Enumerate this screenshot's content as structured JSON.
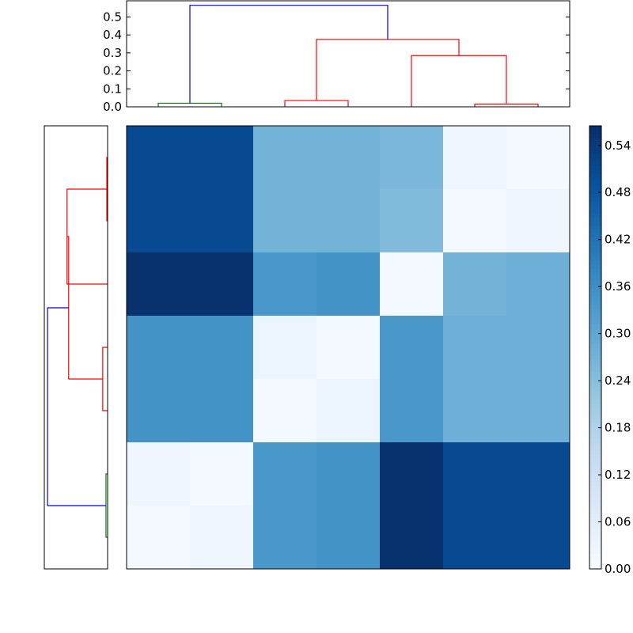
{
  "chart_data": [
    {
      "type": "dendrogram",
      "orientation": "top",
      "ylim": [
        0,
        0.59
      ],
      "yticks": [
        "0.0",
        "0.1",
        "0.2",
        "0.3",
        "0.4",
        "0.5"
      ],
      "leaf_count": 7,
      "links": [
        {
          "left": 0.5,
          "right": 1.5,
          "height": 0.02,
          "color": "#008000"
        },
        {
          "left": 2.5,
          "right": 3.5,
          "height": 0.035,
          "color": "#ff0000"
        },
        {
          "left": 5.5,
          "right": 6.5,
          "height": 0.015,
          "color": "#ff0000"
        },
        {
          "left": 4.5,
          "right": 6.0,
          "height": 0.285,
          "color": "#ff0000"
        },
        {
          "left": 3.0,
          "right": 5.25,
          "height": 0.375,
          "color": "#ff0000"
        },
        {
          "left": 1.0,
          "right": 4.125,
          "height": 0.565,
          "color": "#0000ff"
        }
      ]
    },
    {
      "type": "dendrogram",
      "orientation": "left",
      "leaf_count": 7,
      "links": [
        {
          "top": 0.5,
          "bottom": 1.5,
          "height": 0.01,
          "color": "#ff0000"
        },
        {
          "top": 1.0,
          "bottom": 2.5,
          "height": 0.5,
          "color": "#ff0000"
        },
        {
          "top": 3.5,
          "bottom": 4.5,
          "height": 0.06,
          "color": "#ff0000"
        },
        {
          "top": 1.75,
          "bottom": 4.0,
          "height": 0.48,
          "color": "#ff0000"
        },
        {
          "top": 5.5,
          "bottom": 6.5,
          "height": 0.02,
          "color": "#008000"
        },
        {
          "top": 2.875,
          "bottom": 6.0,
          "height": 0.74,
          "color": "#0000ff"
        }
      ]
    },
    {
      "type": "heatmap",
      "rows": 7,
      "cols": 7,
      "vmin": 0.0,
      "vmax": 0.565,
      "colormap": "Blues",
      "values": [
        [
          0.51,
          0.51,
          0.27,
          0.27,
          0.26,
          0.02,
          0.01
        ],
        [
          0.51,
          0.51,
          0.27,
          0.27,
          0.25,
          0.01,
          0.02
        ],
        [
          0.56,
          0.56,
          0.34,
          0.35,
          0.01,
          0.27,
          0.28
        ],
        [
          0.35,
          0.35,
          0.03,
          0.01,
          0.34,
          0.28,
          0.28
        ],
        [
          0.35,
          0.35,
          0.01,
          0.03,
          0.34,
          0.28,
          0.28
        ],
        [
          0.02,
          0.01,
          0.34,
          0.35,
          0.56,
          0.51,
          0.51
        ],
        [
          0.01,
          0.02,
          0.34,
          0.35,
          0.56,
          0.51,
          0.51
        ]
      ]
    },
    {
      "type": "colorbar",
      "vmin": 0.0,
      "vmax": 0.565,
      "ticks": [
        0.0,
        0.06,
        0.12,
        0.18,
        0.24,
        0.3,
        0.36,
        0.42,
        0.48,
        0.54
      ],
      "tick_labels": [
        "0.00",
        "0.06",
        "0.12",
        "0.18",
        "0.24",
        "0.30",
        "0.36",
        "0.42",
        "0.48",
        "0.54"
      ]
    }
  ]
}
